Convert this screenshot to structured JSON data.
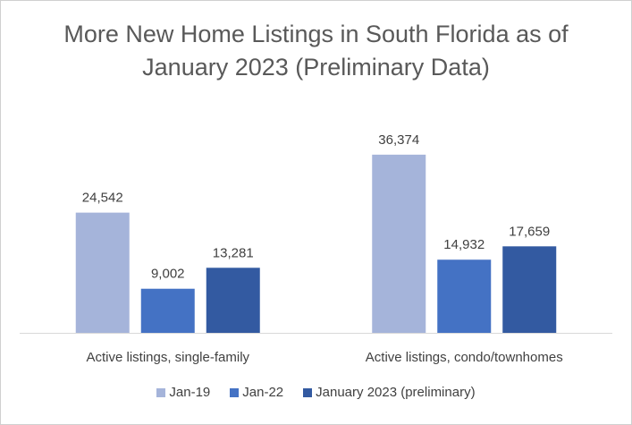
{
  "chart_data": {
    "type": "bar",
    "title_lines": [
      "More New Home Listings in South Florida as of",
      "January 2023 (Preliminary Data)"
    ],
    "categories": [
      "Active listings, single-family",
      "Active listings, condo/townhomes"
    ],
    "series": [
      {
        "name": "Jan-19",
        "values": [
          24542,
          36374
        ],
        "labels": [
          "24,542",
          "36,374"
        ],
        "color": "#A5B4DA"
      },
      {
        "name": "Jan-22",
        "values": [
          9002,
          14932
        ],
        "labels": [
          "9,002",
          "14,932"
        ],
        "color": "#4472C4"
      },
      {
        "name": "January 2023 (preliminary)",
        "values": [
          13281,
          17659
        ],
        "labels": [
          "13,281",
          "17,659"
        ],
        "color": "#335AA1"
      }
    ],
    "ylim": [
      0,
      40000
    ],
    "grid": false,
    "legend_position": "bottom",
    "xlabel": "",
    "ylabel": ""
  }
}
